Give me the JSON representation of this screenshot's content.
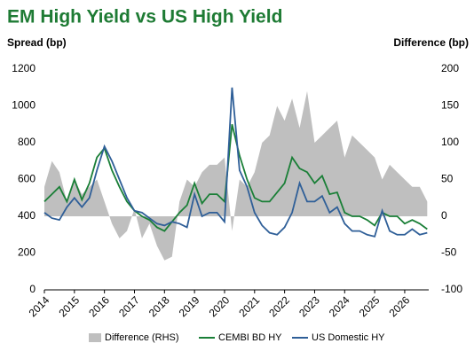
{
  "chart_data": {
    "type": "line",
    "title": "EM High Yield vs US High Yield",
    "y_label": "Spread (bp)",
    "y2_label": "Difference (bp)",
    "x": [
      2014,
      2014.25,
      2014.5,
      2014.75,
      2015,
      2015.25,
      2015.5,
      2015.75,
      2016,
      2016.25,
      2016.5,
      2016.75,
      2017,
      2017.25,
      2017.5,
      2017.75,
      2018,
      2018.25,
      2018.5,
      2018.75,
      2019,
      2019.25,
      2019.5,
      2019.75,
      2020,
      2020.25,
      2020.5,
      2020.75,
      2021,
      2021.25,
      2021.5,
      2021.75,
      2022,
      2022.25,
      2022.5,
      2022.75,
      2023,
      2023.25,
      2023.5,
      2023.75,
      2024,
      2024.25,
      2024.5,
      2024.75,
      2025,
      2025.25,
      2025.5,
      2025.75,
      2026,
      2026.25,
      2026.5,
      2026.75
    ],
    "xlim": [
      2014,
      2026.8
    ],
    "xticks": [
      2014,
      2015,
      2016,
      2017,
      2018,
      2019,
      2020,
      2021,
      2022,
      2023,
      2024,
      2025,
      2026
    ],
    "ylim": [
      0,
      1200
    ],
    "yticks": [
      0,
      200,
      400,
      600,
      800,
      1000,
      1200
    ],
    "y2lim": [
      -100,
      200
    ],
    "y2ticks": [
      -100,
      -50,
      0,
      50,
      100,
      150,
      200
    ],
    "series": [
      {
        "name": "Difference (RHS)",
        "style": "area",
        "axis": "y2",
        "color": "#bfbfbf",
        "values": [
          40,
          75,
          60,
          20,
          50,
          30,
          40,
          50,
          20,
          -10,
          -30,
          -20,
          10,
          -30,
          -10,
          -40,
          -60,
          -55,
          20,
          50,
          40,
          60,
          70,
          70,
          80,
          -20,
          50,
          40,
          60,
          100,
          110,
          150,
          130,
          160,
          120,
          170,
          100,
          110,
          120,
          130,
          80,
          110,
          100,
          90,
          80,
          50,
          70,
          60,
          50,
          40,
          40,
          20
        ]
      },
      {
        "name": "CEMBI BD HY",
        "style": "line",
        "color": "#1a7f37",
        "values": [
          480,
          520,
          560,
          480,
          600,
          490,
          580,
          720,
          770,
          650,
          560,
          480,
          430,
          400,
          380,
          340,
          320,
          370,
          420,
          460,
          580,
          470,
          520,
          520,
          480,
          900,
          730,
          600,
          500,
          480,
          480,
          530,
          580,
          720,
          660,
          640,
          580,
          620,
          520,
          530,
          420,
          400,
          400,
          380,
          350,
          420,
          400,
          400,
          360,
          380,
          360,
          330
        ]
      },
      {
        "name": "US Domestic HY",
        "style": "line",
        "color": "#2f5f98",
        "values": [
          420,
          390,
          380,
          450,
          500,
          450,
          500,
          650,
          780,
          700,
          600,
          500,
          430,
          420,
          390,
          360,
          350,
          370,
          360,
          340,
          520,
          400,
          420,
          420,
          370,
          1100,
          650,
          560,
          420,
          350,
          310,
          300,
          340,
          420,
          580,
          480,
          480,
          510,
          420,
          450,
          360,
          320,
          320,
          300,
          290,
          430,
          320,
          300,
          300,
          330,
          300,
          310
        ]
      }
    ]
  }
}
